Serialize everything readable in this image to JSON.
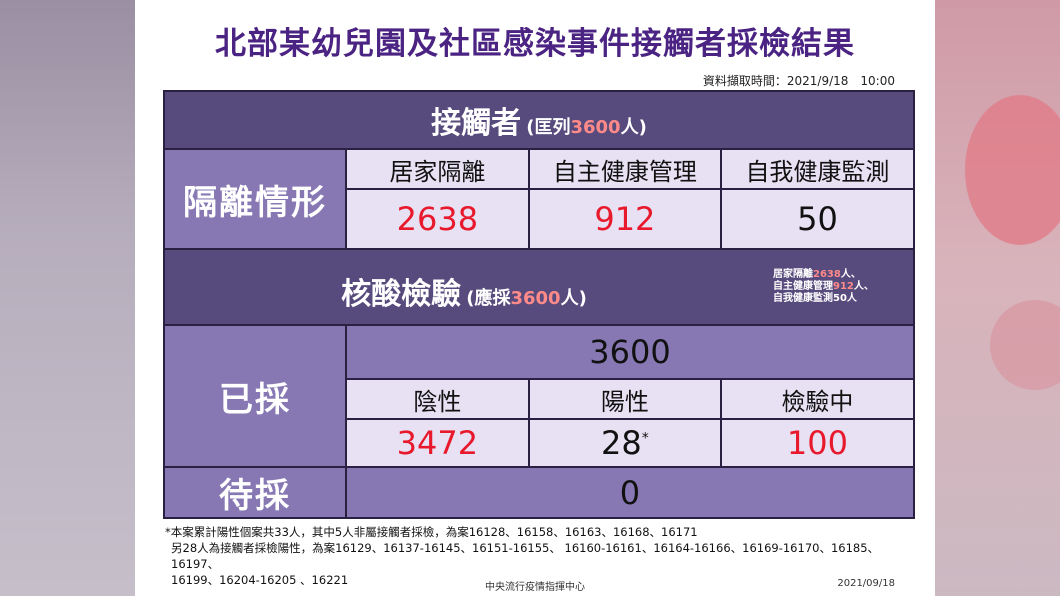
{
  "title": "北部某幼兒園及社區感染事件接觸者採檢結果",
  "datetime": "資料擷取時間：2021/9/18　10:00",
  "contacts": {
    "label": "接觸者",
    "paren_open": "(匡列",
    "count": "3600",
    "paren_close": "人)"
  },
  "isolation": {
    "row_label": "隔離情形",
    "columns": [
      "居家隔離",
      "自主健康管理",
      "自我健康監測"
    ],
    "values": [
      "2638",
      "912",
      "50"
    ]
  },
  "nat": {
    "label": "核酸檢驗",
    "paren_open": "(應採",
    "count": "3600",
    "paren_close": "人)",
    "note": [
      {
        "prefix": "居家隔離",
        "value": "2638",
        "suffix": "人、"
      },
      {
        "prefix": "自主健康管理",
        "value": "912",
        "suffix": "人、"
      },
      {
        "prefix": "自我健康監測",
        "value": "50",
        "suffix": "人"
      }
    ]
  },
  "sampled": {
    "row_label": "已採",
    "total": "3600",
    "columns": [
      "陰性",
      "陽性",
      "檢驗中"
    ],
    "values": [
      "3472",
      "28",
      "100"
    ],
    "positive_mark": "*"
  },
  "pending": {
    "row_label": "待採",
    "value": "0"
  },
  "footnote": [
    "*本案累計陽性個案共33人，其中5人非屬接觸者採檢，為案16128、16158、16163、16168、16171",
    "另28人為接觸者採檢陽性，為案16129、16137-16145、16151-16155、 16160-16161、16164-16166、16169-16170、16185、16197、",
    "16199、16204-16205 、16221"
  ],
  "footer": {
    "source": "中央流行疫情指揮中心",
    "date": "2021/09/18"
  },
  "colors": {
    "title": "#4b2383",
    "dark": "#574a7c",
    "mid": "#8778b4",
    "light": "#e8e0f3",
    "red": "#e8192c",
    "salmon": "#ff8a8a"
  }
}
